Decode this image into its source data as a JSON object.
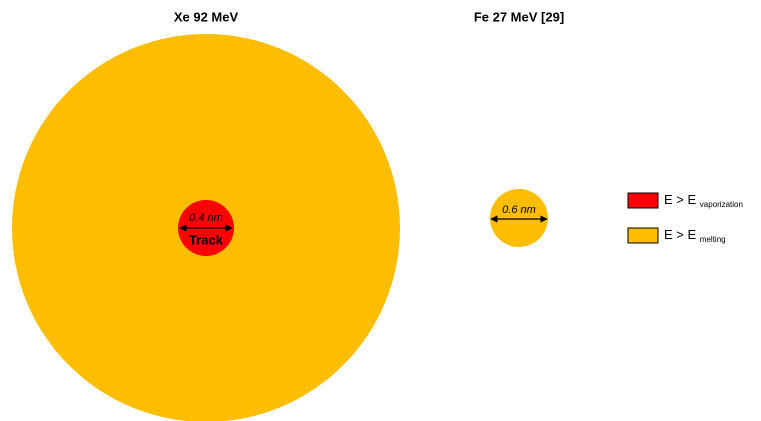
{
  "panels": [
    {
      "title": "Xe 92 MeV",
      "diameter_label": "0.4 nm",
      "core_label": "Track"
    },
    {
      "title": "Fe 27 MeV [29]",
      "diameter_label": "0.6 nm"
    }
  ],
  "legend": [
    {
      "text": "E > E",
      "subscript": "vaporization"
    },
    {
      "text": "E > E",
      "subscript": "melting"
    }
  ]
}
